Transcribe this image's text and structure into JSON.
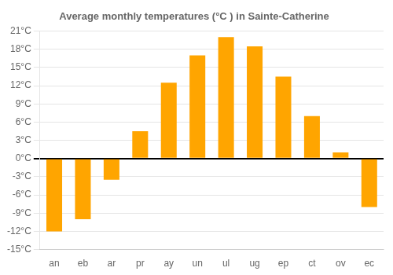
{
  "chart_data": {
    "type": "bar",
    "title": "Average monthly temperatures (°C ) in Sainte-Catherine",
    "categories": [
      "an",
      "eb",
      "ar",
      "pr",
      "ay",
      "un",
      "ul",
      "ug",
      "ep",
      "ct",
      "ov",
      "ec"
    ],
    "values": [
      -12,
      -10,
      -3.5,
      4.5,
      12.5,
      17,
      20,
      18.5,
      13.5,
      7,
      1,
      -8
    ],
    "color": "#FFA500",
    "ylim": [
      -15,
      21
    ],
    "yticks": [
      {
        "value": -15,
        "label": "-15°C"
      },
      {
        "value": -12,
        "label": "-12°C"
      },
      {
        "value": -9,
        "label": "-9°C"
      },
      {
        "value": -6,
        "label": "-6°C"
      },
      {
        "value": -3,
        "label": "-3°C"
      },
      {
        "value": 0,
        "label": "0°C"
      },
      {
        "value": 3,
        "label": "3°C"
      },
      {
        "value": 6,
        "label": "6°C"
      },
      {
        "value": 9,
        "label": "9°C"
      },
      {
        "value": 12,
        "label": "12°C"
      },
      {
        "value": 15,
        "label": "15°C"
      },
      {
        "value": 18,
        "label": "18°C"
      },
      {
        "value": 21,
        "label": "21°C"
      }
    ],
    "grid": true
  }
}
